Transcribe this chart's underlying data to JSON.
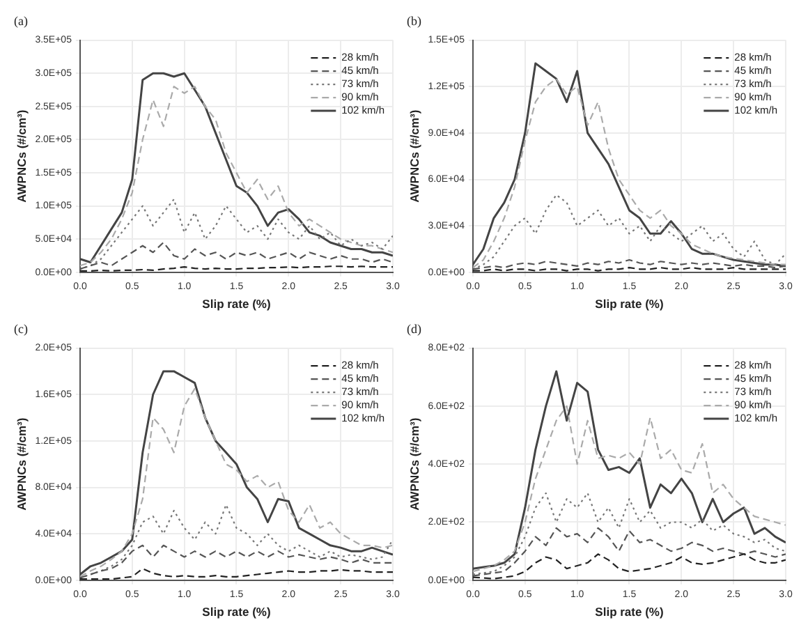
{
  "chart_data": [
    {
      "type": "line",
      "title": "(a)",
      "xlabel": "Slip rate (%)",
      "ylabel": "AWPNCs (#/cm³)",
      "legend": "top right",
      "grid": true,
      "marker": "none",
      "x": [
        0,
        0.1,
        0.2,
        0.3,
        0.4,
        0.5,
        0.6,
        0.7,
        0.8,
        0.9,
        1,
        1.1,
        1.2,
        1.3,
        1.4,
        1.5,
        1.6,
        1.7,
        1.8,
        1.9,
        2,
        2.1,
        2.2,
        2.3,
        2.4,
        2.5,
        2.6,
        2.7,
        2.8,
        2.9,
        3
      ],
      "xlim": [
        0,
        3
      ],
      "xticks": [
        {
          "value": 0,
          "label": "0.0"
        },
        {
          "value": 0.5,
          "label": "0.5"
        },
        {
          "value": 1,
          "label": "1.0"
        },
        {
          "value": 1.5,
          "label": "1.5"
        },
        {
          "value": 2,
          "label": "2.0"
        },
        {
          "value": 2.5,
          "label": "2.5"
        },
        {
          "value": 3,
          "label": "3.0"
        }
      ],
      "ylim": [
        0,
        350000
      ],
      "yticks": [
        {
          "value": 0,
          "label": "0.0E+00"
        },
        {
          "value": 50000,
          "label": "5.0E+04"
        },
        {
          "value": 100000,
          "label": "1.0E+05"
        },
        {
          "value": 150000,
          "label": "1.5E+05"
        },
        {
          "value": 200000,
          "label": "2.0E+05"
        },
        {
          "value": 250000,
          "label": "2.5E+05"
        },
        {
          "value": 300000,
          "label": "3.0E+05"
        },
        {
          "value": 350000,
          "label": "3.5E+05"
        }
      ],
      "series": [
        {
          "name": "28 km/h",
          "color": "#222222",
          "line_style": "dashed",
          "values": [
            2000,
            2000,
            3000,
            2000,
            3000,
            3000,
            4000,
            3000,
            5000,
            6000,
            8000,
            6000,
            5000,
            6000,
            5000,
            5000,
            6000,
            6000,
            7000,
            7000,
            8000,
            7000,
            8000,
            8000,
            9000,
            9000,
            8000,
            9000,
            8000,
            8000,
            8000
          ]
        },
        {
          "name": "45 km/h",
          "color": "#555555",
          "line_style": "dashed",
          "values": [
            5000,
            10000,
            15000,
            10000,
            20000,
            30000,
            40000,
            30000,
            45000,
            25000,
            20000,
            35000,
            25000,
            30000,
            20000,
            30000,
            25000,
            30000,
            20000,
            25000,
            30000,
            20000,
            30000,
            25000,
            20000,
            25000,
            20000,
            20000,
            15000,
            20000,
            15000
          ]
        },
        {
          "name": "73 km/h",
          "color": "#777777",
          "line_style": "dotted",
          "values": [
            5000,
            10000,
            20000,
            40000,
            60000,
            80000,
            100000,
            70000,
            90000,
            110000,
            60000,
            90000,
            50000,
            70000,
            100000,
            80000,
            60000,
            70000,
            50000,
            80000,
            60000,
            50000,
            70000,
            50000,
            60000,
            40000,
            50000,
            40000,
            45000,
            35000,
            55000
          ]
        },
        {
          "name": "90 km/h",
          "color": "#aaaaaa",
          "line_style": "dashed",
          "values": [
            10000,
            15000,
            30000,
            50000,
            80000,
            120000,
            200000,
            260000,
            220000,
            280000,
            270000,
            280000,
            250000,
            230000,
            180000,
            150000,
            120000,
            140000,
            110000,
            130000,
            90000,
            70000,
            80000,
            70000,
            60000,
            50000,
            45000,
            40000,
            40000,
            35000,
            30000
          ]
        },
        {
          "name": "102 km/h",
          "color": "#444444",
          "line_style": "solid",
          "values": [
            20000,
            15000,
            40000,
            65000,
            90000,
            140000,
            290000,
            300000,
            300000,
            295000,
            300000,
            275000,
            250000,
            210000,
            170000,
            130000,
            120000,
            100000,
            70000,
            90000,
            95000,
            80000,
            60000,
            55000,
            45000,
            40000,
            35000,
            35000,
            30000,
            30000,
            25000
          ]
        }
      ]
    },
    {
      "type": "line",
      "title": "(b)",
      "xlabel": "Slip rate (%)",
      "ylabel": "AWPNCs (#/cm³)",
      "legend": "top right",
      "grid": true,
      "marker": "none",
      "x": [
        0,
        0.1,
        0.2,
        0.3,
        0.4,
        0.5,
        0.6,
        0.7,
        0.8,
        0.9,
        1,
        1.1,
        1.2,
        1.3,
        1.4,
        1.5,
        1.6,
        1.7,
        1.8,
        1.9,
        2,
        2.1,
        2.2,
        2.3,
        2.4,
        2.5,
        2.6,
        2.7,
        2.8,
        2.9,
        3
      ],
      "xlim": [
        0,
        3
      ],
      "xticks": [
        {
          "value": 0,
          "label": "0.0"
        },
        {
          "value": 0.5,
          "label": "0.5"
        },
        {
          "value": 1,
          "label": "1.0"
        },
        {
          "value": 1.5,
          "label": "1.5"
        },
        {
          "value": 2,
          "label": "2.0"
        },
        {
          "value": 2.5,
          "label": "2.5"
        },
        {
          "value": 3,
          "label": "3.0"
        }
      ],
      "ylim": [
        0,
        150000
      ],
      "yticks": [
        {
          "value": 0,
          "label": "0.0E+00"
        },
        {
          "value": 30000,
          "label": "3.0E+04"
        },
        {
          "value": 60000,
          "label": "6.0E+04"
        },
        {
          "value": 90000,
          "label": "9.0E+04"
        },
        {
          "value": 120000,
          "label": "1.2E+05"
        },
        {
          "value": 150000,
          "label": "1.5E+05"
        }
      ],
      "series": [
        {
          "name": "28 km/h",
          "color": "#222222",
          "line_style": "dashed",
          "values": [
            1000,
            1000,
            2000,
            1000,
            2000,
            2000,
            1000,
            2000,
            2000,
            1000,
            2000,
            2000,
            1000,
            2000,
            2000,
            3000,
            2000,
            2000,
            3000,
            2000,
            2000,
            3000,
            2000,
            2000,
            2000,
            3000,
            2000,
            2000,
            2000,
            2000,
            2000
          ]
        },
        {
          "name": "45 km/h",
          "color": "#555555",
          "line_style": "dashed",
          "values": [
            2000,
            3000,
            4000,
            3000,
            5000,
            6000,
            5000,
            7000,
            6000,
            5000,
            4000,
            6000,
            5000,
            7000,
            6000,
            8000,
            6000,
            5000,
            7000,
            6000,
            5000,
            6000,
            5000,
            6000,
            5000,
            4000,
            5000,
            4000,
            4000,
            3000,
            4000
          ]
        },
        {
          "name": "73 km/h",
          "color": "#777777",
          "line_style": "dotted",
          "values": [
            2000,
            5000,
            10000,
            20000,
            30000,
            35000,
            25000,
            40000,
            50000,
            45000,
            30000,
            35000,
            40000,
            30000,
            35000,
            25000,
            30000,
            20000,
            30000,
            25000,
            20000,
            25000,
            30000,
            20000,
            25000,
            15000,
            10000,
            20000,
            8000,
            5000,
            12000
          ]
        },
        {
          "name": "90 km/h",
          "color": "#aaaaaa",
          "line_style": "dashed",
          "values": [
            3000,
            8000,
            20000,
            35000,
            55000,
            85000,
            110000,
            120000,
            125000,
            115000,
            120000,
            95000,
            110000,
            80000,
            60000,
            50000,
            40000,
            35000,
            40000,
            30000,
            25000,
            18000,
            15000,
            12000,
            10000,
            9000,
            8000,
            7000,
            6000,
            5000,
            5000
          ]
        },
        {
          "name": "102 km/h",
          "color": "#444444",
          "line_style": "solid",
          "values": [
            5000,
            15000,
            35000,
            45000,
            60000,
            90000,
            135000,
            130000,
            125000,
            110000,
            130000,
            90000,
            80000,
            70000,
            55000,
            40000,
            35000,
            25000,
            25000,
            33000,
            25000,
            15000,
            12000,
            12000,
            10000,
            8000,
            7000,
            6000,
            5000,
            5000,
            4000
          ]
        }
      ]
    },
    {
      "type": "line",
      "title": "(c)",
      "xlabel": "Slip rate (%)",
      "ylabel": "AWPNCs (#/cm³)",
      "legend": "top right",
      "grid": true,
      "marker": "none",
      "x": [
        0,
        0.1,
        0.2,
        0.3,
        0.4,
        0.5,
        0.6,
        0.7,
        0.8,
        0.9,
        1,
        1.1,
        1.2,
        1.3,
        1.4,
        1.5,
        1.6,
        1.7,
        1.8,
        1.9,
        2,
        2.1,
        2.2,
        2.3,
        2.4,
        2.5,
        2.6,
        2.7,
        2.8,
        2.9,
        3
      ],
      "xlim": [
        0,
        3
      ],
      "xticks": [
        {
          "value": 0,
          "label": "0.0"
        },
        {
          "value": 0.5,
          "label": "0.5"
        },
        {
          "value": 1,
          "label": "1.0"
        },
        {
          "value": 1.5,
          "label": "1.5"
        },
        {
          "value": 2,
          "label": "2.0"
        },
        {
          "value": 2.5,
          "label": "2.5"
        },
        {
          "value": 3,
          "label": "3.0"
        }
      ],
      "ylim": [
        0,
        200000
      ],
      "yticks": [
        {
          "value": 0,
          "label": "0.0E+00"
        },
        {
          "value": 40000,
          "label": "4.0E+04"
        },
        {
          "value": 80000,
          "label": "8.0E+04"
        },
        {
          "value": 120000,
          "label": "1.2E+05"
        },
        {
          "value": 160000,
          "label": "1.6E+05"
        },
        {
          "value": 200000,
          "label": "2.0E+05"
        }
      ],
      "series": [
        {
          "name": "28 km/h",
          "color": "#222222",
          "line_style": "dashed",
          "values": [
            1000,
            1000,
            1000,
            1000,
            2000,
            3000,
            10000,
            6000,
            4000,
            3000,
            4000,
            3000,
            3000,
            4000,
            3000,
            3000,
            4000,
            5000,
            6000,
            7000,
            8000,
            7000,
            7000,
            8000,
            8000,
            9000,
            8000,
            8000,
            7000,
            7000,
            7000
          ]
        },
        {
          "name": "45 km/h",
          "color": "#555555",
          "line_style": "dashed",
          "values": [
            2000,
            5000,
            8000,
            10000,
            15000,
            25000,
            30000,
            20000,
            30000,
            25000,
            20000,
            25000,
            20000,
            25000,
            20000,
            25000,
            20000,
            25000,
            20000,
            25000,
            20000,
            22000,
            20000,
            18000,
            20000,
            18000,
            15000,
            18000,
            15000,
            15000,
            15000
          ]
        },
        {
          "name": "73 km/h",
          "color": "#777777",
          "line_style": "dotted",
          "values": [
            2000,
            5000,
            8000,
            12000,
            18000,
            30000,
            50000,
            55000,
            40000,
            60000,
            45000,
            35000,
            50000,
            40000,
            65000,
            45000,
            40000,
            30000,
            40000,
            30000,
            25000,
            30000,
            25000,
            20000,
            25000,
            20000,
            22000,
            20000,
            18000,
            20000,
            35000
          ]
        },
        {
          "name": "90 km/h",
          "color": "#aaaaaa",
          "line_style": "dashed",
          "values": [
            3000,
            8000,
            12000,
            18000,
            25000,
            40000,
            70000,
            140000,
            130000,
            110000,
            150000,
            165000,
            140000,
            120000,
            100000,
            95000,
            85000,
            90000,
            80000,
            85000,
            60000,
            50000,
            65000,
            45000,
            50000,
            40000,
            35000,
            30000,
            30000,
            28000,
            30000
          ]
        },
        {
          "name": "102 km/h",
          "color": "#444444",
          "line_style": "solid",
          "values": [
            5000,
            12000,
            15000,
            20000,
            25000,
            35000,
            110000,
            160000,
            180000,
            180000,
            175000,
            170000,
            140000,
            120000,
            110000,
            100000,
            80000,
            70000,
            50000,
            70000,
            68000,
            45000,
            40000,
            35000,
            30000,
            28000,
            25000,
            25000,
            28000,
            25000,
            22000
          ]
        }
      ]
    },
    {
      "type": "line",
      "title": "(d)",
      "xlabel": "Slip rate (%)",
      "ylabel": "AWPNCs (#/cm³)",
      "legend": "top right",
      "grid": true,
      "marker": "none",
      "x": [
        0,
        0.1,
        0.2,
        0.3,
        0.4,
        0.5,
        0.6,
        0.7,
        0.8,
        0.9,
        1,
        1.1,
        1.2,
        1.3,
        1.4,
        1.5,
        1.6,
        1.7,
        1.8,
        1.9,
        2,
        2.1,
        2.2,
        2.3,
        2.4,
        2.5,
        2.6,
        2.7,
        2.8,
        2.9,
        3
      ],
      "xlim": [
        0,
        3
      ],
      "xticks": [
        {
          "value": 0,
          "label": "0.0"
        },
        {
          "value": 0.5,
          "label": "0.5"
        },
        {
          "value": 1,
          "label": "1.0"
        },
        {
          "value": 1.5,
          "label": "1.5"
        },
        {
          "value": 2,
          "label": "2.0"
        },
        {
          "value": 2.5,
          "label": "2.5"
        },
        {
          "value": 3,
          "label": "3.0"
        }
      ],
      "ylim": [
        0,
        800
      ],
      "yticks": [
        {
          "value": 0,
          "label": "0.0E+00"
        },
        {
          "value": 200,
          "label": "2.0E+02"
        },
        {
          "value": 400,
          "label": "4.0E+02"
        },
        {
          "value": 600,
          "label": "6.0E+02"
        },
        {
          "value": 800,
          "label": "8.0E+02"
        }
      ],
      "series": [
        {
          "name": "28 km/h",
          "color": "#222222",
          "line_style": "dashed",
          "values": [
            10,
            8,
            5,
            10,
            15,
            30,
            60,
            80,
            70,
            40,
            50,
            60,
            90,
            70,
            40,
            30,
            35,
            40,
            50,
            60,
            80,
            60,
            55,
            60,
            70,
            80,
            90,
            70,
            60,
            60,
            70
          ]
        },
        {
          "name": "45 km/h",
          "color": "#555555",
          "line_style": "dashed",
          "values": [
            15,
            20,
            25,
            30,
            60,
            100,
            150,
            120,
            180,
            150,
            160,
            130,
            180,
            150,
            100,
            170,
            130,
            140,
            120,
            100,
            110,
            130,
            120,
            100,
            110,
            100,
            90,
            100,
            90,
            80,
            90
          ]
        },
        {
          "name": "73 km/h",
          "color": "#777777",
          "line_style": "dotted",
          "values": [
            20,
            25,
            30,
            50,
            80,
            150,
            250,
            300,
            200,
            280,
            250,
            300,
            200,
            250,
            180,
            280,
            200,
            240,
            180,
            200,
            200,
            180,
            210,
            170,
            190,
            160,
            150,
            130,
            140,
            110,
            100
          ]
        },
        {
          "name": "90 km/h",
          "color": "#aaaaaa",
          "line_style": "dashed",
          "values": [
            30,
            40,
            50,
            70,
            100,
            200,
            350,
            450,
            550,
            600,
            400,
            550,
            420,
            430,
            420,
            440,
            400,
            560,
            420,
            450,
            380,
            370,
            470,
            300,
            330,
            280,
            250,
            220,
            210,
            200,
            190
          ]
        },
        {
          "name": "102 km/h",
          "color": "#444444",
          "line_style": "solid",
          "values": [
            40,
            45,
            50,
            60,
            90,
            250,
            450,
            600,
            720,
            550,
            680,
            650,
            450,
            380,
            390,
            370,
            420,
            250,
            330,
            300,
            350,
            300,
            200,
            280,
            200,
            230,
            250,
            160,
            180,
            150,
            130
          ]
        }
      ]
    }
  ]
}
